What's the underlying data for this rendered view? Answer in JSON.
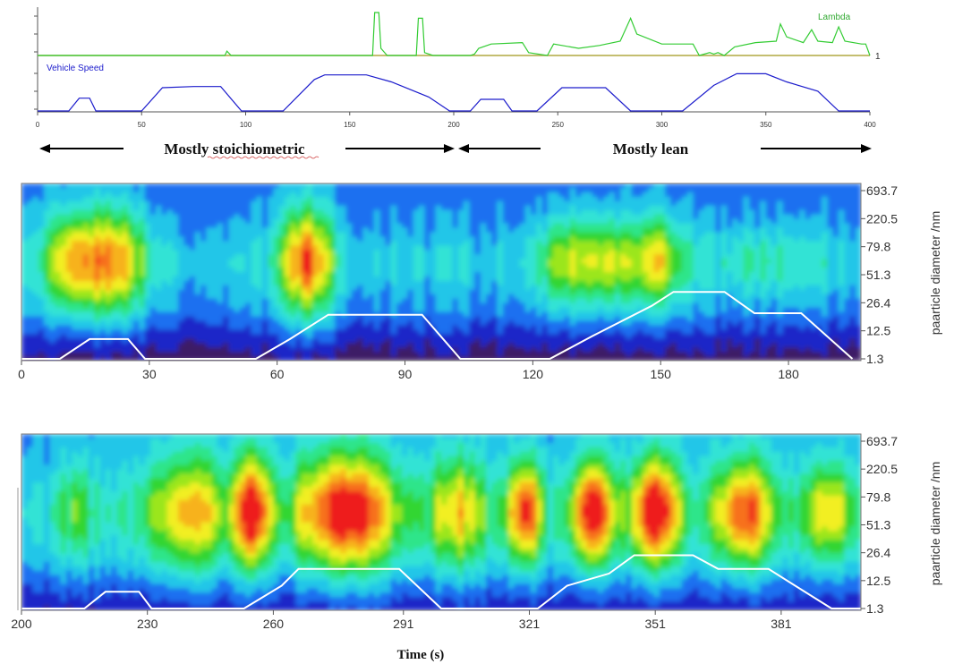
{
  "chart_data": [
    {
      "type": "line",
      "x_ticks": [
        "0",
        "50",
        "100",
        "150",
        "200",
        "250",
        "300",
        "350",
        "400"
      ],
      "xlim": [
        0,
        400
      ],
      "series": [
        {
          "name": "Lambda",
          "color": "#33cc33",
          "reference_value_label": "1",
          "points": [
            [
              0,
              1
            ],
            [
              15,
              1
            ],
            [
              90,
              1
            ],
            [
              91,
              1.3
            ],
            [
              93,
              1
            ],
            [
              161,
              1
            ],
            [
              162,
              4
            ],
            [
              164,
              4
            ],
            [
              165,
              1.5
            ],
            [
              168,
              1
            ],
            [
              182,
              1
            ],
            [
              183,
              3.6
            ],
            [
              185,
              3.6
            ],
            [
              186,
              1.2
            ],
            [
              190,
              1
            ],
            [
              208,
              1
            ],
            [
              210,
              1.1
            ],
            [
              212,
              1.5
            ],
            [
              218,
              1.8
            ],
            [
              233,
              1.9
            ],
            [
              236,
              1.2
            ],
            [
              245,
              1
            ],
            [
              248,
              1.8
            ],
            [
              260,
              1.5
            ],
            [
              270,
              1.7
            ],
            [
              280,
              2
            ],
            [
              285,
              3.6
            ],
            [
              288,
              2.5
            ],
            [
              300,
              1.8
            ],
            [
              315,
              1.8
            ],
            [
              318,
              1
            ],
            [
              323,
              1.2
            ],
            [
              325,
              1.1
            ],
            [
              327,
              1.2
            ],
            [
              330,
              1
            ],
            [
              335,
              1.6
            ],
            [
              345,
              1.9
            ],
            [
              355,
              2
            ],
            [
              357,
              3.2
            ],
            [
              360,
              2.3
            ],
            [
              368,
              1.9
            ],
            [
              372,
              2.8
            ],
            [
              375,
              2
            ],
            [
              382,
              1.9
            ],
            [
              385,
              3
            ],
            [
              388,
              2
            ],
            [
              396,
              1.8
            ],
            [
              398,
              1.8
            ],
            [
              400,
              1
            ]
          ]
        },
        {
          "name": "Vehicle Speed",
          "color": "#1c1ccc",
          "points": [
            [
              0,
              0
            ],
            [
              15,
              0
            ],
            [
              20,
              1.1
            ],
            [
              25,
              1.1
            ],
            [
              28,
              0
            ],
            [
              50,
              0
            ],
            [
              60,
              2
            ],
            [
              75,
              2.1
            ],
            [
              88,
              2.1
            ],
            [
              98,
              0
            ],
            [
              118,
              0
            ],
            [
              133,
              2.7
            ],
            [
              138,
              3.1
            ],
            [
              158,
              3.1
            ],
            [
              170,
              2.5
            ],
            [
              188,
              1.2
            ],
            [
              198,
              0
            ],
            [
              208,
              0
            ],
            [
              213,
              1
            ],
            [
              224,
              1
            ],
            [
              228,
              0
            ],
            [
              240,
              0
            ],
            [
              252,
              2
            ],
            [
              273,
              2
            ],
            [
              285,
              0
            ],
            [
              310,
              0
            ],
            [
              325,
              2.2
            ],
            [
              336,
              3.2
            ],
            [
              350,
              3.2
            ],
            [
              360,
              2.5
            ],
            [
              375,
              1.7
            ],
            [
              385,
              0
            ],
            [
              400,
              0
            ]
          ]
        }
      ],
      "annotations": [
        "Mostly stoichiometric",
        "Mostly lean"
      ]
    },
    {
      "type": "heatmap",
      "x_ticks": [
        "0",
        "30",
        "60",
        "90",
        "120",
        "150",
        "180"
      ],
      "y_ticks": [
        "693.7",
        "220.5",
        "79.8",
        "51.3",
        "26.4",
        "12.5",
        "1.3"
      ],
      "ylabel": "paarticle diameter /nm",
      "colorscale": [
        "#3d1a66",
        "#1f28c8",
        "#1f6ff0",
        "#22c6e8",
        "#33e3d5",
        "#2fe58a",
        "#33d633",
        "#9be61f",
        "#f2ef22",
        "#f7b21a",
        "#f7711a",
        "#ee1a1a"
      ],
      "speed_trace_color": "#ffffff",
      "blobs": [
        {
          "x_center": 12,
          "y_level": "51.3-79.8",
          "intensity": "orange"
        },
        {
          "x_center": 22,
          "y_level": "51.3-79.8",
          "intensity": "orange"
        },
        {
          "x_center": 67,
          "y_level": "51.3-79.8",
          "intensity": "red"
        },
        {
          "x_center": 130,
          "y_level": "51.3-79.8",
          "intensity": "green"
        },
        {
          "x_center": 150,
          "y_level": "51.3-79.8",
          "intensity": "yellow"
        }
      ]
    },
    {
      "type": "heatmap",
      "x_ticks": [
        "200",
        "230",
        "260",
        "291",
        "321",
        "351",
        "381"
      ],
      "y_ticks": [
        "693.7",
        "220.5",
        "79.8",
        "51.3",
        "26.4",
        "12.5",
        "1.3"
      ],
      "ylabel": "paarticle diameter /nm",
      "xlabel": "Time (s)",
      "colorscale": [
        "#3d1a66",
        "#1f28c8",
        "#1f6ff0",
        "#22c6e8",
        "#33e3d5",
        "#2fe58a",
        "#33d633",
        "#9be61f",
        "#f2ef22",
        "#f7b21a",
        "#f7711a",
        "#ee1a1a"
      ],
      "speed_trace_color": "#ffffff",
      "blobs": [
        {
          "x_center": 255,
          "y_level": "51.3-79.8",
          "intensity": "red"
        },
        {
          "x_center": 276,
          "y_level": "51.3-79.8",
          "intensity": "red"
        },
        {
          "x_center": 320,
          "y_level": "51.3-79.8",
          "intensity": "red"
        },
        {
          "x_center": 336,
          "y_level": "51.3-79.8",
          "intensity": "red"
        },
        {
          "x_center": 351,
          "y_level": "51.3-79.8",
          "intensity": "red"
        },
        {
          "x_center": 372,
          "y_level": "51.3-79.8",
          "intensity": "orange"
        }
      ]
    }
  ]
}
